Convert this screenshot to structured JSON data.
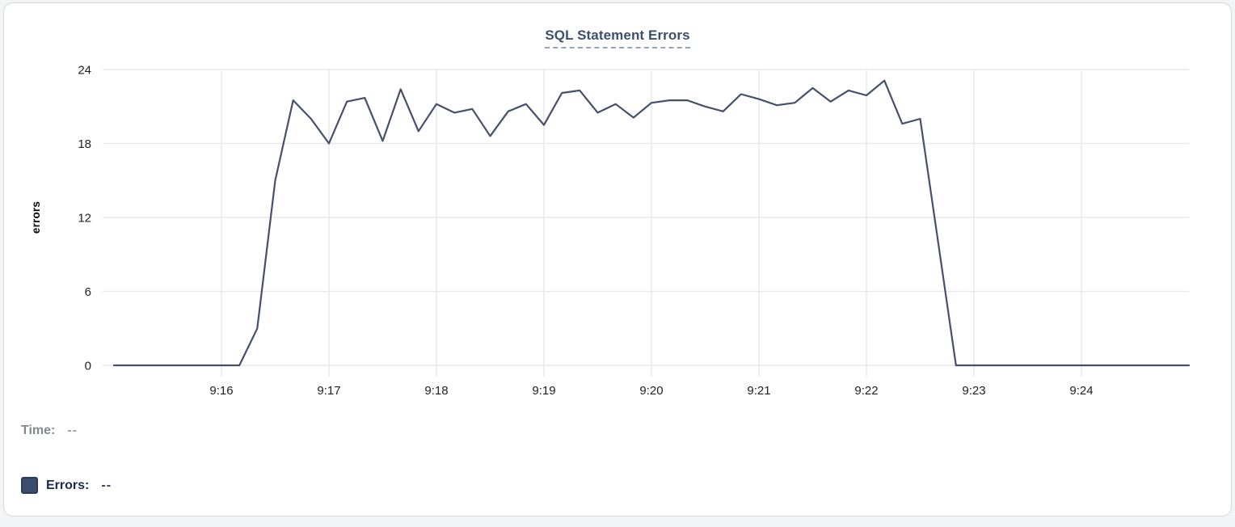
{
  "chart_data": {
    "type": "line",
    "title": "SQL Statement Errors",
    "xlabel": "",
    "ylabel": "errors",
    "ylim": [
      0,
      24
    ],
    "yticks": [
      0,
      6,
      12,
      18,
      24
    ],
    "grid": true,
    "legend_position": "bottom-left",
    "x": [
      "9:15:00",
      "9:15:10",
      "9:15:20",
      "9:15:30",
      "9:15:40",
      "9:15:50",
      "9:16:00",
      "9:16:10",
      "9:16:20",
      "9:16:30",
      "9:16:40",
      "9:16:50",
      "9:17:00",
      "9:17:10",
      "9:17:20",
      "9:17:30",
      "9:17:40",
      "9:17:50",
      "9:18:00",
      "9:18:10",
      "9:18:20",
      "9:18:30",
      "9:18:40",
      "9:18:50",
      "9:19:00",
      "9:19:10",
      "9:19:20",
      "9:19:30",
      "9:19:40",
      "9:19:50",
      "9:20:00",
      "9:20:10",
      "9:20:20",
      "9:20:30",
      "9:20:40",
      "9:20:50",
      "9:21:00",
      "9:21:10",
      "9:21:20",
      "9:21:30",
      "9:21:40",
      "9:21:50",
      "9:22:00",
      "9:22:10",
      "9:22:20",
      "9:22:30",
      "9:22:40",
      "9:22:50",
      "9:23:00",
      "9:23:10",
      "9:23:20",
      "9:23:30",
      "9:23:40",
      "9:23:50",
      "9:24:00",
      "9:24:10",
      "9:24:20",
      "9:24:30",
      "9:24:40",
      "9:24:50",
      "9:25:00"
    ],
    "xticks": [
      {
        "label": "9:16",
        "index": 6
      },
      {
        "label": "9:17",
        "index": 12
      },
      {
        "label": "9:18",
        "index": 18
      },
      {
        "label": "9:19",
        "index": 24
      },
      {
        "label": "9:20",
        "index": 30
      },
      {
        "label": "9:21",
        "index": 36
      },
      {
        "label": "9:22",
        "index": 42
      },
      {
        "label": "9:23",
        "index": 48
      },
      {
        "label": "9:24",
        "index": 54
      }
    ],
    "series": [
      {
        "name": "Errors",
        "color": "#44506C",
        "values": [
          0,
          0,
          0,
          0,
          0,
          0,
          0,
          0,
          3,
          15,
          21.5,
          20,
          18,
          21.4,
          21.7,
          18.2,
          22.4,
          19,
          21.2,
          20.5,
          20.8,
          18.6,
          20.6,
          21.2,
          19.5,
          22.1,
          22.3,
          20.5,
          21.2,
          20.1,
          21.3,
          21.5,
          21.5,
          21,
          20.6,
          22,
          21.6,
          21.1,
          21.3,
          22.5,
          21.4,
          22.3,
          21.9,
          23.1,
          19.6,
          20,
          10,
          0,
          0,
          0,
          0,
          0,
          0,
          0,
          0,
          0,
          0,
          0,
          0,
          0,
          0
        ]
      }
    ]
  },
  "readout": {
    "time_label": "Time:",
    "time_value": "--",
    "errors_label": "Errors:",
    "errors_value": "--"
  },
  "colors": {
    "line": "#44506C",
    "title": "#3C4F6D",
    "title_underline": "#97A3BD",
    "grid": "#E9E9E9",
    "swatch_fill": "#3E4D6B",
    "swatch_border": "#2B3A57",
    "time_text": "#85888D",
    "errors_text": "#1C2A50"
  }
}
